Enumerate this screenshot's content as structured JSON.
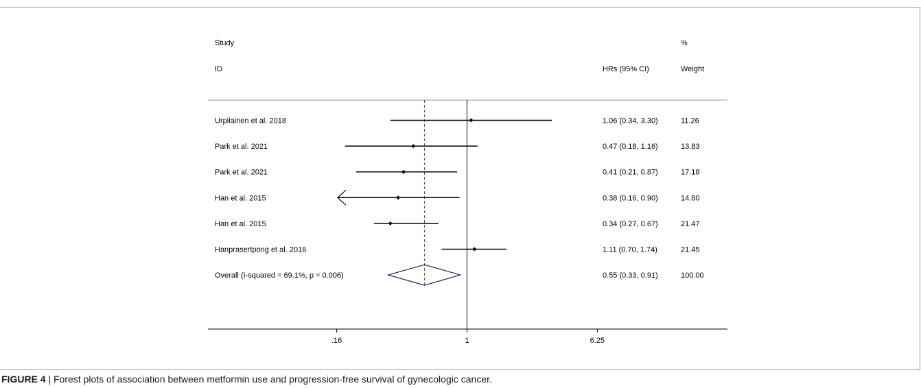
{
  "header": {
    "study": "Study",
    "id": "ID",
    "effect": "HRs (95% CI)",
    "pct": "%",
    "weight": "Weight"
  },
  "caption": {
    "label": "FIGURE 4",
    "separator": " | ",
    "text": "Forest plots of association between metformin use and progression-free survival of gynecologic cancer."
  },
  "chart_data": {
    "type": "forest",
    "scale": "log",
    "x_ticks": [
      0.16,
      1,
      6.25
    ],
    "x_tick_labels": [
      ".16",
      "1",
      "6.25"
    ],
    "null_line": 1,
    "studies": [
      {
        "name": "Urpilainen et al. 2018",
        "hr": 1.06,
        "lo": 0.34,
        "hi": 3.3,
        "label": "1.06 (0.34, 3.30)",
        "weight": "11.26"
      },
      {
        "name": "Park et al. 2021",
        "hr": 0.47,
        "lo": 0.18,
        "hi": 1.16,
        "label": "0.47 (0.18, 1.16)",
        "weight": "13.83"
      },
      {
        "name": "Park et al. 2021",
        "hr": 0.41,
        "lo": 0.21,
        "hi": 0.87,
        "label": "0.41 (0.21, 0.87)",
        "weight": "17.18"
      },
      {
        "name": "Han et al. 2015",
        "hr": 0.38,
        "lo": 0.16,
        "hi": 0.9,
        "label": "0.38 (0.16, 0.90)",
        "weight": "14.80",
        "lo_arrow": true
      },
      {
        "name": "Han et al. 2015",
        "hr": 0.34,
        "lo": 0.27,
        "hi": 0.67,
        "label": "0.34 (0.27, 0.67)",
        "weight": "21.47"
      },
      {
        "name": "Hanprasertpong et al. 2016",
        "hr": 1.11,
        "lo": 0.7,
        "hi": 1.74,
        "label": "1.11 (0.70, 1.74)",
        "weight": "21.45"
      }
    ],
    "overall": {
      "name": "Overall  (I-squared = 69.1%, p = 0.006)",
      "hr": 0.55,
      "lo": 0.33,
      "hi": 0.91,
      "label": "0.55 (0.33, 0.91)",
      "weight": "100.00"
    },
    "colors": {
      "line": "#000000",
      "diamond": "#1f1f6e",
      "pooled_line": "#a0282d"
    }
  }
}
